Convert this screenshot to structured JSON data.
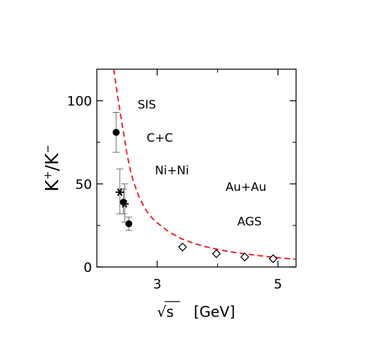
{
  "chart_data": {
    "type": "scatter",
    "title": "",
    "xlabel_prefix": "√s",
    "xlabel_unit": "[GeV]",
    "ylabel": {
      "base1": "K",
      "sup1": "+",
      "slash": "/K",
      "sup2": "−"
    },
    "xlim": [
      2.0,
      5.3
    ],
    "ylim": [
      0,
      119
    ],
    "xticks": [
      3,
      5
    ],
    "xtick_labels": [
      "3",
      "5"
    ],
    "yticks": [
      0,
      50,
      100
    ],
    "ytick_labels": [
      "0",
      "50",
      "100"
    ],
    "grid": false,
    "annotations": [
      "SIS",
      "C+C",
      "Ni+Ni",
      "Au+Au",
      "AGS"
    ],
    "series": [
      {
        "marker": "filled-circle",
        "points": [
          {
            "x": 2.32,
            "y": 81,
            "ylo": 69,
            "yhi": 93
          },
          {
            "x": 2.44,
            "y": 39,
            "ylo": 32,
            "yhi": 47
          },
          {
            "x": 2.53,
            "y": 26,
            "ylo": 22,
            "yhi": 30
          }
        ]
      },
      {
        "marker": "star",
        "points": [
          {
            "x": 2.38,
            "y": 45,
            "ylo": 32,
            "yhi": 59
          },
          {
            "x": 2.46,
            "y": 38,
            "ylo": 27,
            "yhi": 50
          }
        ]
      },
      {
        "marker": "open-diamond",
        "points": [
          {
            "x": 3.42,
            "y": 12
          },
          {
            "x": 3.98,
            "y": 8
          },
          {
            "x": 4.45,
            "y": 6
          },
          {
            "x": 4.92,
            "y": 5
          }
        ]
      }
    ],
    "curve": {
      "style": "dashed",
      "color": "#e8202a",
      "points": [
        [
          2.28,
          119
        ],
        [
          2.32,
          109
        ],
        [
          2.36,
          99
        ],
        [
          2.4,
          90
        ],
        [
          2.45,
          79
        ],
        [
          2.5,
          68
        ],
        [
          2.55,
          59
        ],
        [
          2.6,
          52
        ],
        [
          2.7,
          42
        ],
        [
          2.8,
          35
        ],
        [
          2.9,
          30
        ],
        [
          3.0,
          26.5
        ],
        [
          3.2,
          21
        ],
        [
          3.4,
          17
        ],
        [
          3.6,
          14.3
        ],
        [
          3.8,
          12.2
        ],
        [
          4.0,
          10.6
        ],
        [
          4.2,
          9.2
        ],
        [
          4.4,
          8.2
        ],
        [
          4.6,
          7.2
        ],
        [
          4.8,
          6.4
        ],
        [
          5.0,
          5.6
        ],
        [
          5.15,
          5.1
        ],
        [
          5.3,
          4.7
        ]
      ]
    },
    "colors": {
      "axes": "#000000",
      "markers": "#000000",
      "errorbars": "#666666"
    }
  }
}
